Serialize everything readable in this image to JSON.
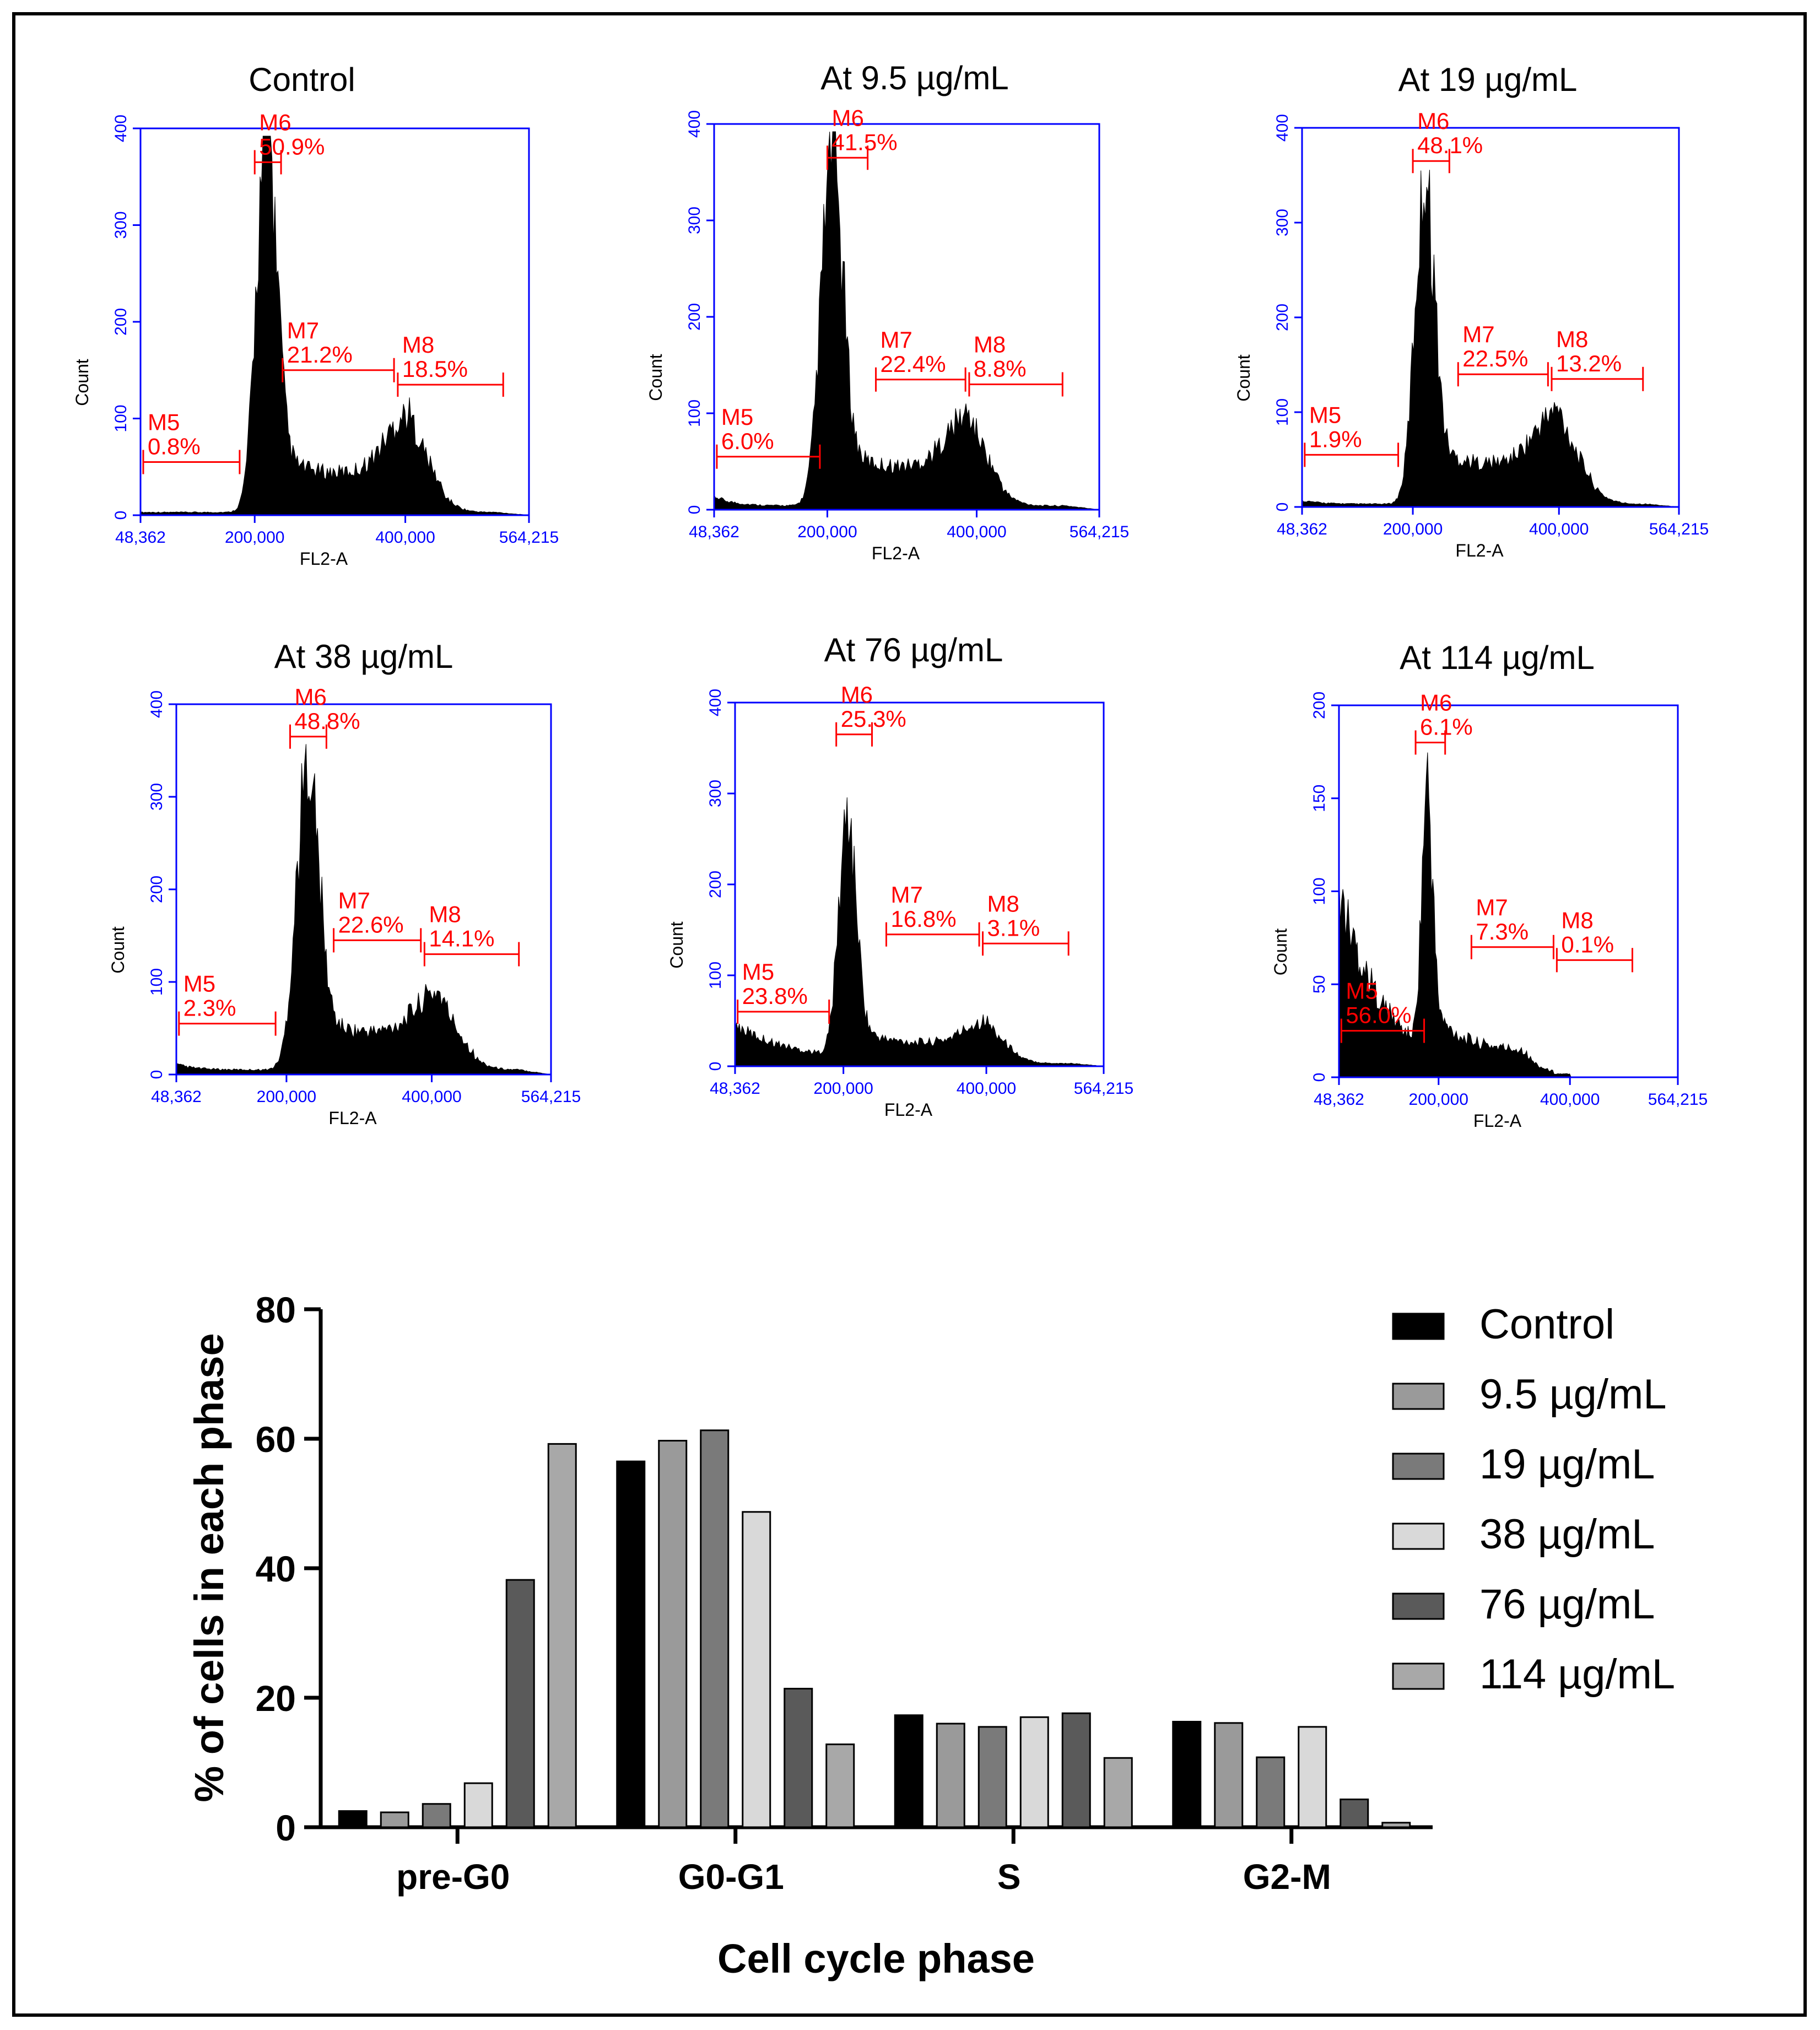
{
  "colors": {
    "axis": "#0000ff",
    "gate": "#ff0000",
    "hist": "#000000",
    "frame": "#000000"
  },
  "histograms": [
    {
      "title": "Control",
      "ymax": 400,
      "yticks": [
        "0",
        "100",
        "200",
        "300",
        "400"
      ],
      "xticks": [
        "48,362",
        "200,000",
        "400,000",
        "564,215"
      ],
      "xlabel": "FL2-A",
      "ylabel": "Count",
      "gates": [
        {
          "name": "M5",
          "value": "0.8%",
          "from": 52000,
          "to": 180000,
          "level": 55
        },
        {
          "name": "M6",
          "value": "50.9%",
          "from": 200000,
          "to": 235000,
          "level": 365
        },
        {
          "name": "M7",
          "value": "21.2%",
          "from": 237000,
          "to": 385000,
          "level": 150
        },
        {
          "name": "M8",
          "value": "18.5%",
          "from": 390000,
          "to": 530000,
          "level": 135
        }
      ],
      "peaks": {
        "base": 3,
        "mode": "normal",
        "g1": 215000,
        "g1h": 385,
        "g1w": 13000,
        "s": 40,
        "g2": 405000,
        "g2h": 62,
        "g2w": 30000,
        "debris": 0
      }
    },
    {
      "title": "At 9.5 µg/mL",
      "ymax": 400,
      "yticks": [
        "0",
        "100",
        "200",
        "300",
        "400"
      ],
      "xticks": [
        "48,362",
        "200,000",
        "400,000",
        "564,215"
      ],
      "xlabel": "FL2-A",
      "ylabel": "Count",
      "gates": [
        {
          "name": "M5",
          "value": "6.0%",
          "from": 52000,
          "to": 190000,
          "level": 55
        },
        {
          "name": "M6",
          "value": "41.5%",
          "from": 200000,
          "to": 254000,
          "level": 365
        },
        {
          "name": "M7",
          "value": "22.4%",
          "from": 265000,
          "to": 385000,
          "level": 135
        },
        {
          "name": "M8",
          "value": "8.8%",
          "from": 390000,
          "to": 515000,
          "level": 130
        }
      ],
      "peaks": {
        "base": 4,
        "mode": "normal",
        "g1": 205000,
        "g1h": 350,
        "g1w": 14000,
        "s": 40,
        "g2": 390000,
        "g2h": 55,
        "g2w": 30000,
        "debris": 10
      }
    },
    {
      "title": "At 19 µg/mL",
      "ymax": 400,
      "yticks": [
        "0",
        "100",
        "200",
        "300",
        "400"
      ],
      "xticks": [
        "48,362",
        "200,000",
        "400,000",
        "564,215"
      ],
      "xlabel": "FL2-A",
      "ylabel": "Count",
      "gates": [
        {
          "name": "M5",
          "value": "1.9%",
          "from": 52000,
          "to": 180000,
          "level": 55
        },
        {
          "name": "M6",
          "value": "48.1%",
          "from": 200000,
          "to": 250000,
          "level": 365
        },
        {
          "name": "M7",
          "value": "22.5%",
          "from": 262000,
          "to": 385000,
          "level": 140
        },
        {
          "name": "M8",
          "value": "13.2%",
          "from": 390000,
          "to": 515000,
          "level": 135
        }
      ],
      "peaks": {
        "base": 3,
        "mode": "normal",
        "g1": 215000,
        "g1h": 320,
        "g1w": 13000,
        "s": 42,
        "g2": 400000,
        "g2h": 57,
        "g2w": 32000,
        "debris": 4
      }
    },
    {
      "title": "At 38 µg/mL",
      "ymax": 400,
      "yticks": [
        "0",
        "100",
        "200",
        "300",
        "400"
      ],
      "xticks": [
        "48,362",
        "200,000",
        "400,000",
        "564,215"
      ],
      "xlabel": "FL2-A",
      "ylabel": "Count",
      "gates": [
        {
          "name": "M5",
          "value": "2.3%",
          "from": 52000,
          "to": 185000,
          "level": 55
        },
        {
          "name": "M6",
          "value": "48.8%",
          "from": 205000,
          "to": 255000,
          "level": 365
        },
        {
          "name": "M7",
          "value": "22.6%",
          "from": 265000,
          "to": 385000,
          "level": 145
        },
        {
          "name": "M8",
          "value": "14.1%",
          "from": 390000,
          "to": 520000,
          "level": 130
        }
      ],
      "peaks": {
        "base": 5,
        "mode": "normal",
        "g1": 228000,
        "g1h": 315,
        "g1w": 15000,
        "s": 40,
        "g2": 410000,
        "g2h": 45,
        "g2w": 32000,
        "debris": 6
      }
    },
    {
      "title": "At 76 µg/mL",
      "ymax": 400,
      "yticks": [
        "0",
        "100",
        "200",
        "300",
        "400"
      ],
      "xticks": [
        "48,362",
        "200,000",
        "400,000",
        "564,215"
      ],
      "xlabel": "FL2-A",
      "ylabel": "Count",
      "gates": [
        {
          "name": "M5",
          "value": "23.8%",
          "from": 52000,
          "to": 180000,
          "level": 60
        },
        {
          "name": "M6",
          "value": "25.3%",
          "from": 190000,
          "to": 240000,
          "level": 365
        },
        {
          "name": "M7",
          "value": "16.8%",
          "from": 260000,
          "to": 390000,
          "level": 145
        },
        {
          "name": "M8",
          "value": "3.1%",
          "from": 395000,
          "to": 515000,
          "level": 135
        }
      ],
      "peaks": {
        "base": 3,
        "mode": "apoptotic",
        "g1": 205000,
        "g1h": 255,
        "g1w": 12000,
        "s": 22,
        "g2": 400000,
        "g2h": 25,
        "g2w": 30000,
        "debris": 42
      }
    },
    {
      "title": "At 114 µg/mL",
      "ymax": 200,
      "yticks": [
        "0",
        "50",
        "100",
        "150",
        "200"
      ],
      "xticks": [
        "48,362",
        "200,000",
        "400,000",
        "564,215"
      ],
      "xlabel": "FL2-A",
      "ylabel": "Count",
      "gates": [
        {
          "name": "M5",
          "value": "56.0%",
          "from": 52000,
          "to": 178000,
          "level": 25
        },
        {
          "name": "M6",
          "value": "6.1%",
          "from": 165000,
          "to": 210000,
          "level": 180
        },
        {
          "name": "M7",
          "value": "7.3%",
          "from": 250000,
          "to": 375000,
          "level": 70
        },
        {
          "name": "M8",
          "value": "0.1%",
          "from": 380000,
          "to": 495000,
          "level": 63
        }
      ],
      "peaks": {
        "base": 1,
        "mode": "dead",
        "g1": 182000,
        "g1h": 135,
        "g1w": 8000,
        "s": 12,
        "g2": 330000,
        "g2h": 0,
        "g2w": 30000,
        "debris": 100
      }
    }
  ],
  "chart_data": {
    "type": "bar",
    "categories": [
      "pre-G0",
      "G0-G1",
      "S",
      "G2-M"
    ],
    "series": [
      {
        "name": "Control",
        "color": "#000000",
        "values": [
          2.5,
          56.5,
          17.3,
          16.3
        ]
      },
      {
        "name": "9.5 µg/mL",
        "color": "#9a9a9a",
        "values": [
          2.3,
          59.7,
          16.0,
          16.1
        ]
      },
      {
        "name": "19 µg/mL",
        "color": "#7a7a7a",
        "values": [
          3.6,
          61.3,
          15.5,
          10.8
        ]
      },
      {
        "name": "38 µg/mL",
        "color": "#d9d9d9",
        "values": [
          6.8,
          48.7,
          17.0,
          15.5
        ]
      },
      {
        "name": "76 µg/mL",
        "color": "#5a5a5a",
        "values": [
          38.2,
          21.4,
          17.6,
          4.3
        ]
      },
      {
        "name": "114 µg/mL",
        "color": "#a8a8a8",
        "values": [
          59.2,
          12.8,
          10.7,
          0.7
        ]
      }
    ],
    "title": "",
    "xlabel": "Cell cycle phase",
    "ylabel": "% of cells in each phase",
    "ylim": [
      0,
      80
    ],
    "yticks": [
      "0",
      "20",
      "40",
      "60",
      "80"
    ],
    "legend": "right"
  }
}
